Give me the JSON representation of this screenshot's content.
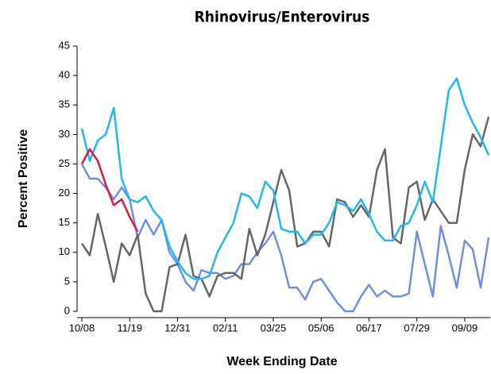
{
  "chart_data": {
    "type": "line",
    "title": "Rhinovirus/Enterovirus",
    "xlabel": "Week Ending Date",
    "ylabel": "Percent Positive",
    "categories": [
      "10/08",
      null,
      null,
      null,
      null,
      null,
      "11/19",
      null,
      null,
      null,
      null,
      null,
      "12/31",
      null,
      null,
      null,
      null,
      null,
      "02/11",
      null,
      null,
      null,
      null,
      null,
      "03/25",
      null,
      null,
      null,
      null,
      null,
      "05/06",
      null,
      null,
      null,
      null,
      null,
      "06/17",
      null,
      null,
      null,
      null,
      null,
      "07/29",
      null,
      null,
      null,
      null,
      null,
      "09/09",
      null,
      null,
      null
    ],
    "series": [
      {
        "color": "#6d8fe6",
        "values": [
          25,
          22.5,
          22.5,
          21,
          19,
          21,
          19,
          12.5,
          15.5,
          13,
          15.5,
          10,
          8,
          5,
          3.5,
          7,
          6.5,
          6.5,
          5.5,
          6,
          8,
          8,
          10,
          11.5,
          13.5,
          9.5,
          4,
          4,
          2,
          5,
          5.5,
          3.5,
          1.5,
          0,
          0,
          2.5,
          4.5,
          2.5,
          3.5,
          2.5,
          2.5,
          3,
          13.5,
          8,
          2.5,
          14.5,
          9.5,
          4,
          12,
          10.5,
          4,
          12.5
        ]
      },
      {
        "color": "#666666",
        "values": [
          11.5,
          9.5,
          16.5,
          11,
          5,
          11.5,
          9.5,
          13,
          3,
          0,
          0,
          7.5,
          8,
          13,
          6,
          5.5,
          2.5,
          6,
          6.5,
          6.5,
          5.5,
          14,
          9.5,
          13,
          18.5,
          24,
          20.5,
          11,
          11.5,
          13.5,
          13.5,
          11,
          19,
          18.5,
          16,
          18,
          16,
          24,
          27.5,
          12.5,
          11.5,
          21,
          22,
          15.5,
          19,
          17,
          15,
          15,
          24,
          30,
          28,
          33
        ]
      },
      {
        "color": "#1fb8f0",
        "values": [
          31,
          25.5,
          29,
          30,
          34.5,
          22.5,
          19,
          18.5,
          19.5,
          17,
          15.5,
          11,
          8.5,
          6.5,
          5.5,
          5.5,
          6,
          10,
          12.5,
          15,
          20,
          19.5,
          17.5,
          22,
          20.5,
          14,
          13.5,
          13.5,
          11.5,
          13,
          13,
          15,
          18.5,
          18,
          17,
          19,
          16.5,
          13.5,
          12,
          12,
          14.5,
          15,
          18,
          22,
          18.5,
          28,
          37.5,
          39.5,
          35,
          32,
          29.5,
          26.5
        ]
      },
      {
        "color": "#d81b4a",
        "values": [
          25,
          27.5,
          25.5,
          21.5,
          18,
          19,
          16,
          13.5,
          null,
          null,
          null,
          null,
          null,
          null,
          null,
          null,
          null,
          null,
          null,
          null,
          null,
          null,
          null,
          null,
          null,
          null,
          null,
          null,
          null,
          null,
          null,
          null,
          null,
          null,
          null,
          null,
          null,
          null,
          null,
          null,
          null,
          null,
          null,
          null,
          null,
          null,
          null,
          null,
          null,
          null,
          null,
          null
        ]
      }
    ],
    "ylim": [
      0,
      45
    ],
    "yticks": [
      0,
      5,
      10,
      15,
      20,
      25,
      30,
      35,
      40,
      45
    ]
  }
}
